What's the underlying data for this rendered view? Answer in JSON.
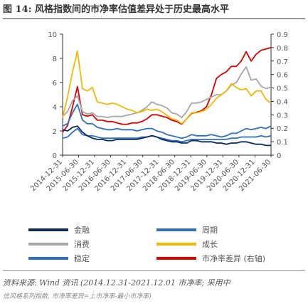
{
  "figure": {
    "title": "图 14: 风格指数间的市净率估值差异处于历史最高水平",
    "source": "资料来源: Wind 资讯 (2014.12.31-2021.12.01 市净率; 采用中",
    "note": "信风格系列指数, 市净率差异=上市净率-最小市净率)"
  },
  "chart_data": {
    "type": "line",
    "title": "",
    "xlabel": "",
    "ylabel": "",
    "y_left": {
      "min": 0,
      "max": 10,
      "ticks": [
        0,
        2,
        4,
        6,
        8,
        10
      ]
    },
    "y_right": {
      "min": 0,
      "max": 0.9,
      "ticks": [
        0,
        0.1,
        0.2,
        0.3,
        0.4,
        0.5,
        0.6,
        0.7,
        0.8,
        0.9
      ]
    },
    "x_tick_labels": [
      "2014-12-31",
      "2015-06-30",
      "2015-12-31",
      "2016-06-30",
      "2016-12-31",
      "2017-06-30",
      "2017-12-31",
      "2018-06-30",
      "2018-12-31",
      "2019-06-30",
      "2019-12-31",
      "2020-06-30",
      "2020-12-31",
      "2021-06-30"
    ],
    "x": [
      "2014-12",
      "2015-02",
      "2015-04",
      "2015-06",
      "2015-08",
      "2015-10",
      "2015-12",
      "2016-02",
      "2016-04",
      "2016-06",
      "2016-08",
      "2016-10",
      "2016-12",
      "2017-02",
      "2017-04",
      "2017-06",
      "2017-08",
      "2017-10",
      "2017-12",
      "2018-02",
      "2018-04",
      "2018-06",
      "2018-08",
      "2018-10",
      "2018-12",
      "2019-02",
      "2019-04",
      "2019-06",
      "2019-08",
      "2019-10",
      "2019-12",
      "2020-02",
      "2020-04",
      "2020-06",
      "2020-08",
      "2020-10",
      "2020-12",
      "2021-02",
      "2021-04",
      "2021-06",
      "2021-08",
      "2021-10",
      "2021-12"
    ],
    "series": [
      {
        "name": "金融",
        "color": "#0d2a5c",
        "axis": "left",
        "values": [
          2.1,
          2.0,
          2.3,
          2.4,
          1.9,
          1.6,
          1.4,
          1.3,
          1.3,
          1.2,
          1.2,
          1.3,
          1.3,
          1.3,
          1.3,
          1.3,
          1.4,
          1.5,
          1.6,
          1.5,
          1.3,
          1.2,
          1.1,
          1.1,
          1.0,
          1.0,
          1.2,
          1.2,
          1.1,
          1.1,
          1.1,
          1.0,
          1.0,
          0.9,
          1.0,
          1.0,
          1.1,
          1.1,
          1.0,
          0.9,
          0.9,
          0.8,
          0.8
        ]
      },
      {
        "name": "周期",
        "color": "#2e6fc0",
        "axis": "left",
        "values": [
          2.4,
          2.6,
          3.5,
          4.2,
          2.9,
          2.6,
          2.6,
          2.3,
          2.2,
          2.1,
          2.1,
          2.2,
          2.1,
          2.1,
          2.1,
          2.0,
          2.1,
          2.2,
          2.2,
          2.0,
          1.9,
          1.7,
          1.6,
          1.5,
          1.4,
          1.5,
          1.7,
          1.6,
          1.6,
          1.6,
          1.7,
          1.6,
          1.5,
          1.6,
          1.8,
          1.8,
          2.0,
          2.2,
          2.1,
          2.2,
          2.3,
          2.2,
          2.4
        ]
      },
      {
        "name": "消费",
        "color": "#a6a6a6",
        "axis": "left",
        "values": [
          3.2,
          3.6,
          4.5,
          4.9,
          3.6,
          3.4,
          3.5,
          3.2,
          3.2,
          3.1,
          3.2,
          3.2,
          3.2,
          3.3,
          3.4,
          3.5,
          3.7,
          4.0,
          4.4,
          4.2,
          4.1,
          3.9,
          3.5,
          3.4,
          3.1,
          3.6,
          4.3,
          4.3,
          4.4,
          4.6,
          4.8,
          5.0,
          5.0,
          5.3,
          5.8,
          6.0,
          6.7,
          7.3,
          6.2,
          6.3,
          5.7,
          5.5,
          5.6
        ]
      },
      {
        "name": "成长",
        "color": "#f5b800",
        "axis": "left",
        "values": [
          3.1,
          4.8,
          6.9,
          8.6,
          5.5,
          5.3,
          5.6,
          4.4,
          4.3,
          4.2,
          4.3,
          4.2,
          4.0,
          3.8,
          3.7,
          3.5,
          3.6,
          3.8,
          3.7,
          3.8,
          3.6,
          3.3,
          3.0,
          2.9,
          2.6,
          3.0,
          3.5,
          3.5,
          3.6,
          3.8,
          4.2,
          4.7,
          5.0,
          5.3,
          5.9,
          5.6,
          5.4,
          5.5,
          4.9,
          5.3,
          5.3,
          4.6,
          4.3
        ]
      },
      {
        "name": "稳定",
        "color": "#2e6fc0",
        "axis": "left",
        "values": [
          1.4,
          1.5,
          1.9,
          2.2,
          1.7,
          1.6,
          1.6,
          1.5,
          1.4,
          1.4,
          1.4,
          1.4,
          1.4,
          1.4,
          1.4,
          1.4,
          1.5,
          1.5,
          1.6,
          1.5,
          1.4,
          1.3,
          1.2,
          1.2,
          1.1,
          1.2,
          1.3,
          1.3,
          1.3,
          1.3,
          1.3,
          1.3,
          1.3,
          1.3,
          1.4,
          1.4,
          1.5,
          1.5,
          1.5,
          1.5,
          1.6,
          1.5,
          1.6
        ]
      },
      {
        "name": "市净率差异 (右轴)",
        "color": "#e00000",
        "axis": "right",
        "values": [
          0.17,
          0.22,
          0.36,
          0.51,
          0.3,
          0.29,
          0.3,
          0.26,
          0.26,
          0.25,
          0.25,
          0.24,
          0.23,
          0.23,
          0.24,
          0.24,
          0.25,
          0.27,
          0.3,
          0.3,
          0.29,
          0.28,
          0.26,
          0.25,
          0.23,
          0.27,
          0.31,
          0.32,
          0.33,
          0.36,
          0.45,
          0.57,
          0.6,
          0.62,
          0.66,
          0.66,
          0.7,
          0.77,
          0.7,
          0.75,
          0.78,
          0.79,
          0.8
        ]
      }
    ],
    "legend_position": "bottom",
    "grid": false
  }
}
